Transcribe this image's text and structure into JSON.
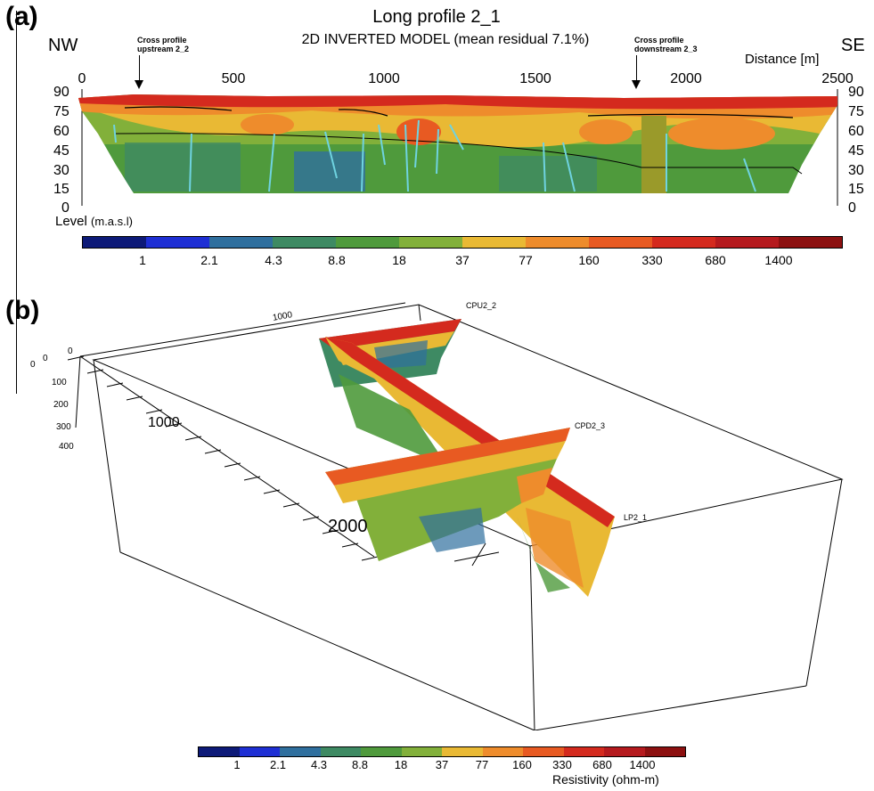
{
  "panel_a": {
    "label": "(a)",
    "title": "Long profile 2_1",
    "subtitle": "2D INVERTED MODEL (mean residual 7.1%)",
    "left_dir": "NW",
    "right_dir": "SE",
    "distance_label": "Distance [m]",
    "level_label": "Level",
    "level_unit": "(m.a.s.l)",
    "annotation_left": [
      "Cross profile",
      "upstream 2_2"
    ],
    "annotation_right": [
      "Cross profile",
      "downstream 2_3"
    ],
    "x_ticks": [
      "0",
      "500",
      "1000",
      "1500",
      "2000",
      "2500"
    ],
    "y_ticks": [
      "90",
      "75",
      "60",
      "45",
      "30",
      "15",
      "0"
    ]
  },
  "panel_b": {
    "label": "(b)",
    "profile_labels": {
      "cpu": "CPU2_2",
      "cpd": "CPD2_3",
      "lp": "LP2_1"
    },
    "axis_labels": {
      "top_1000": "1000",
      "left_0a": "0",
      "left_0b": "0",
      "left_0c": "0",
      "d100": "100",
      "d200": "200",
      "d300": "300",
      "d400": "400",
      "mid_1000": "1000",
      "mid_2000": "2000"
    },
    "colorbar_title": "Resistivity (ohm-m)"
  },
  "colorbar": {
    "colors": [
      "#0d1a78",
      "#1e2fd4",
      "#2f6f9e",
      "#3e8a63",
      "#4f9a3c",
      "#82b03a",
      "#e9b934",
      "#ee8c2c",
      "#e85a22",
      "#d42a1e",
      "#b51a1e",
      "#8c1010"
    ],
    "labels": [
      "1",
      "2.1",
      "4.3",
      "8.8",
      "18",
      "37",
      "77",
      "160",
      "330",
      "680",
      "1400"
    ]
  },
  "chart_data": {
    "type": "heatmap",
    "title": "Long profile 2_1",
    "subtitle": "2D INVERTED MODEL (mean residual 7.1%)",
    "xlabel": "Distance [m]",
    "ylabel": "Level (m.a.s.l)",
    "xlim": [
      0,
      2500
    ],
    "ylim": [
      0,
      90
    ],
    "x_ticks": [
      0,
      500,
      1000,
      1500,
      2000,
      2500
    ],
    "y_ticks": [
      0,
      15,
      30,
      45,
      60,
      75,
      90
    ],
    "colorbar_unit": "Resistivity (ohm-m)",
    "colorbar_ticks": [
      1,
      2.1,
      4.3,
      8.8,
      18,
      37,
      77,
      160,
      330,
      680,
      1400
    ],
    "annotations": [
      {
        "text": "Cross profile upstream 2_2",
        "x": 200
      },
      {
        "text": "Cross profile downstream 2_3",
        "x": 1830
      }
    ]
  }
}
